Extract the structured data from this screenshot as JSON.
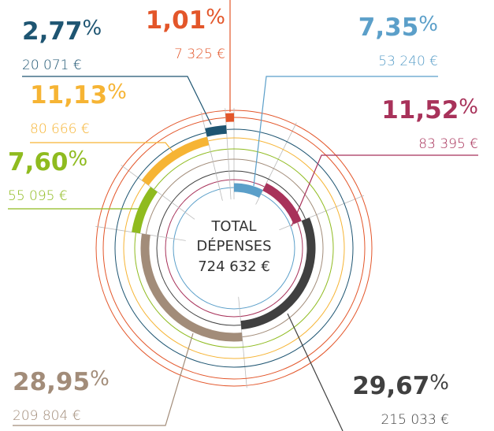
{
  "chart_data": {
    "type": "radial",
    "center_text": [
      "TOTAL",
      "DÉPENSES"
    ],
    "total": 724632,
    "total_label": "724 632 €",
    "series": [
      {
        "color": "#5b9fc9",
        "values": [
          7.35
        ],
        "value_labels": [
          "7,35%"
        ],
        "amounts": [
          53240
        ],
        "amount_labels": [
          "53 240 €"
        ]
      },
      {
        "color": "#a8325a",
        "values": [
          11.52
        ],
        "value_labels": [
          "11,52%"
        ],
        "amounts": [
          83395
        ],
        "amount_labels": [
          "83 395 €"
        ]
      },
      {
        "color": "#404040",
        "values": [
          29.67
        ],
        "value_labels": [
          "29,67%"
        ],
        "amounts": [
          215033
        ],
        "amount_labels": [
          "215 033 €"
        ]
      },
      {
        "color": "#a28c79",
        "values": [
          28.95
        ],
        "value_labels": [
          "28,95%"
        ],
        "amounts": [
          209804
        ],
        "amount_labels": [
          "209 804 €"
        ]
      },
      {
        "color": "#8fbb1f",
        "values": [
          7.6
        ],
        "value_labels": [
          "7,60%"
        ],
        "amounts": [
          55095
        ],
        "amount_labels": [
          "55 095 €"
        ]
      },
      {
        "color": "#f6b434",
        "values": [
          11.13
        ],
        "value_labels": [
          "11,13%"
        ],
        "amounts": [
          80666
        ],
        "amount_labels": [
          "80 666 €"
        ]
      },
      {
        "color": "#1e5572",
        "values": [
          2.77
        ],
        "value_labels": [
          "2,77%"
        ],
        "amounts": [
          20071
        ],
        "amount_labels": [
          "20 071 €"
        ]
      },
      {
        "color": "#e3562a",
        "values": [
          1.01
        ],
        "value_labels": [
          "1,01%"
        ],
        "amounts": [
          7325
        ],
        "amount_labels": [
          "7 325 €"
        ]
      }
    ]
  }
}
